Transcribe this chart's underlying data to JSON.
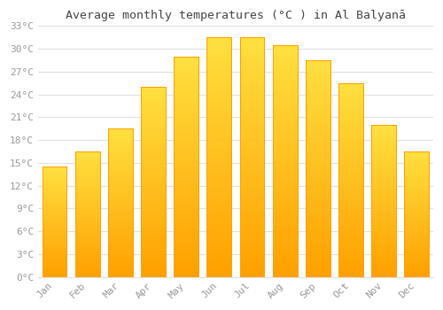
{
  "title": "Average monthly temperatures (°C ) in Al Balyanā",
  "months": [
    "Jan",
    "Feb",
    "Mar",
    "Apr",
    "May",
    "Jun",
    "Jul",
    "Aug",
    "Sep",
    "Oct",
    "Nov",
    "Dec"
  ],
  "values": [
    14.5,
    16.5,
    19.5,
    25.0,
    29.0,
    31.5,
    31.5,
    30.5,
    28.5,
    25.5,
    20.0,
    16.5
  ],
  "bar_color_light": "#FFD060",
  "bar_color_dark": "#FFA000",
  "background_color": "#ffffff",
  "grid_color": "#e0e0e0",
  "ylim": [
    0,
    33
  ],
  "yticks": [
    0,
    3,
    6,
    9,
    12,
    15,
    18,
    21,
    24,
    27,
    30,
    33
  ],
  "title_fontsize": 9.5,
  "tick_fontsize": 8,
  "tick_color": "#999999"
}
